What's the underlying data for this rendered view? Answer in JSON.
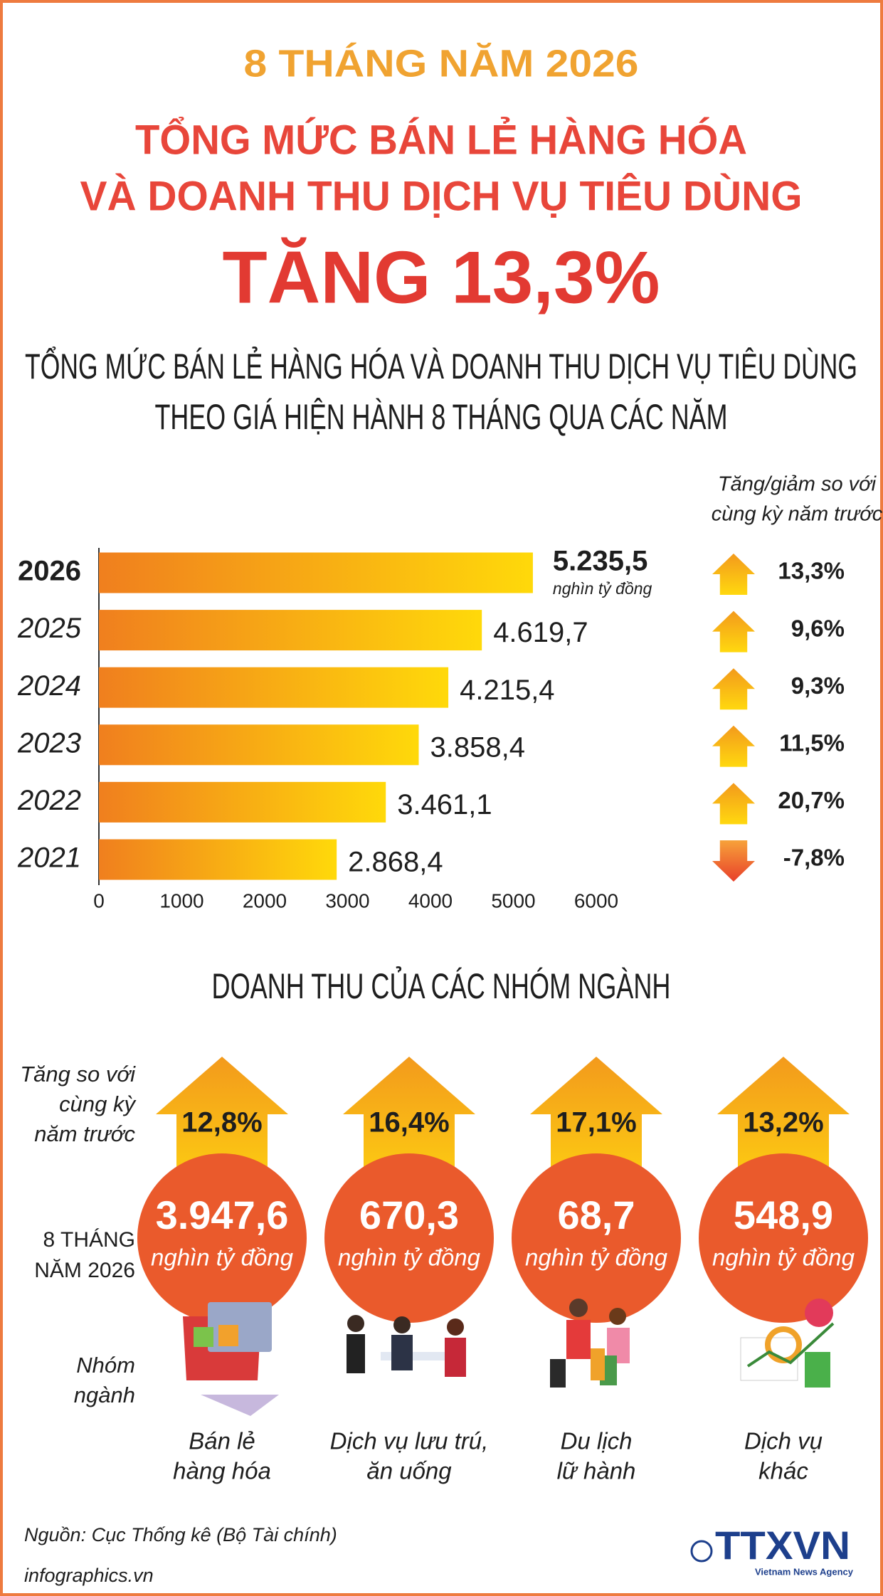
{
  "header": {
    "kicker": "8 THÁNG NĂM 2026",
    "title_lines": [
      "TỔNG MỨC BÁN LẺ HÀNG HÓA",
      "VÀ DOANH THU DỊCH VỤ TIÊU DÙNG"
    ],
    "headline": "TĂNG 13,3%"
  },
  "chart_data": {
    "type": "bar",
    "orientation": "horizontal",
    "title_lines": [
      "TỔNG MỨC BÁN LẺ HÀNG HÓA VÀ DOANH THU DỊCH VỤ TIÊU DÙNG",
      "THEO GIÁ HIỆN HÀNH 8 THÁNG QUA CÁC NĂM"
    ],
    "categories": [
      "2026",
      "2025",
      "2024",
      "2023",
      "2022",
      "2021"
    ],
    "values": [
      5235.5,
      4619.7,
      4215.4,
      3858.4,
      3461.1,
      2868.4
    ],
    "value_labels": [
      "5.235,5",
      "4.619,7",
      "4.215,4",
      "3.858,4",
      "3.461,1",
      "2.868,4"
    ],
    "unit": "nghìn tỷ đồng",
    "xlim": [
      0,
      6000
    ],
    "xticks": [
      0,
      1000,
      2000,
      3000,
      4000,
      5000,
      6000
    ],
    "change_title_lines": [
      "Tăng/giảm so với",
      "cùng kỳ năm trước"
    ],
    "changes": [
      13.3,
      9.6,
      9.3,
      11.5,
      20.7,
      -7.8
    ],
    "change_labels": [
      "13,3%",
      "9,6%",
      "9,3%",
      "11,5%",
      "20,7%",
      "-7,8%"
    ]
  },
  "groups": {
    "title": "DOANH THU CỦA CÁC NHÓM NGÀNH",
    "growth_label_lines": [
      "Tăng so với",
      "cùng kỳ",
      "năm trước"
    ],
    "value_label_lines": [
      "8 THÁNG",
      "NĂM 2026"
    ],
    "name_label_lines": [
      "Nhóm",
      "ngành"
    ],
    "items": [
      {
        "growth": 12.8,
        "growth_label": "12,8%",
        "value": 3947.6,
        "value_label": "3.947,6",
        "unit": "nghìn tỷ đồng",
        "name_lines": [
          "Bán lẻ",
          "hàng hóa"
        ]
      },
      {
        "growth": 16.4,
        "growth_label": "16,4%",
        "value": 670.3,
        "value_label": "670,3",
        "unit": "nghìn tỷ đồng",
        "name_lines": [
          "Dịch vụ lưu trú,",
          "ăn uống"
        ]
      },
      {
        "growth": 17.1,
        "growth_label": "17,1%",
        "value": 68.7,
        "value_label": "68,7",
        "unit": "nghìn tỷ đồng",
        "name_lines": [
          "Du lịch",
          "lữ hành"
        ]
      },
      {
        "growth": 13.2,
        "growth_label": "13,2%",
        "value": 548.9,
        "value_label": "548,9",
        "unit": "nghìn tỷ đồng",
        "name_lines": [
          "Dịch vụ",
          "khác"
        ]
      }
    ]
  },
  "footer": {
    "source": "Nguồn: Cục Thống kê (Bộ Tài chính)",
    "site": "infographics.vn",
    "logo": "TTXVN",
    "agency": "Vietnam News Agency"
  }
}
